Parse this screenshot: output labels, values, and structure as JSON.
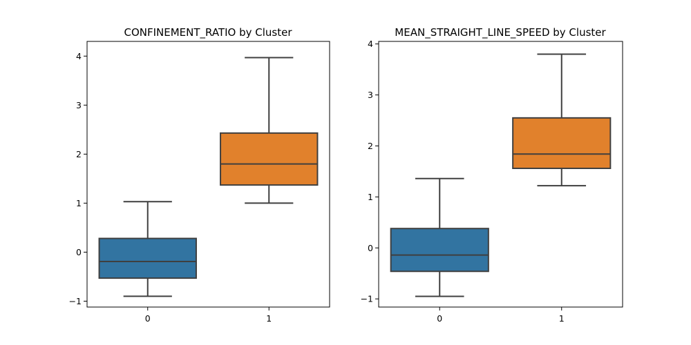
{
  "chart_data": [
    {
      "type": "box",
      "title": "CONFINEMENT_RATIO by Cluster",
      "xlabel": "",
      "ylabel": "",
      "categories": [
        "0",
        "1"
      ],
      "yticks": [
        "−1",
        "0",
        "1",
        "2",
        "3",
        "4"
      ],
      "ytick_values": [
        -1,
        0,
        1,
        2,
        3,
        4
      ],
      "ylim": [
        -1.12,
        4.3
      ],
      "grid": false,
      "boxes": [
        {
          "category": "0",
          "whisker_low": -0.9,
          "q1": -0.53,
          "median": -0.19,
          "q3": 0.28,
          "whisker_high": 1.03,
          "color": "#3274a1"
        },
        {
          "category": "1",
          "whisker_low": 1.0,
          "q1": 1.37,
          "median": 1.8,
          "q3": 2.43,
          "whisker_high": 3.97,
          "color": "#e1812c"
        }
      ]
    },
    {
      "type": "box",
      "title": "MEAN_STRAIGHT_LINE_SPEED by Cluster",
      "xlabel": "",
      "ylabel": "",
      "categories": [
        "0",
        "1"
      ],
      "yticks": [
        "−1",
        "0",
        "1",
        "2",
        "3",
        "4"
      ],
      "ytick_values": [
        -1,
        0,
        1,
        2,
        3,
        4
      ],
      "ylim": [
        -1.16,
        4.05
      ],
      "grid": false,
      "boxes": [
        {
          "category": "0",
          "whisker_low": -0.95,
          "q1": -0.46,
          "median": -0.14,
          "q3": 0.38,
          "whisker_high": 1.36,
          "color": "#3274a1"
        },
        {
          "category": "1",
          "whisker_low": 1.22,
          "q1": 1.56,
          "median": 1.84,
          "q3": 2.55,
          "whisker_high": 3.8,
          "color": "#e1812c"
        }
      ]
    }
  ]
}
